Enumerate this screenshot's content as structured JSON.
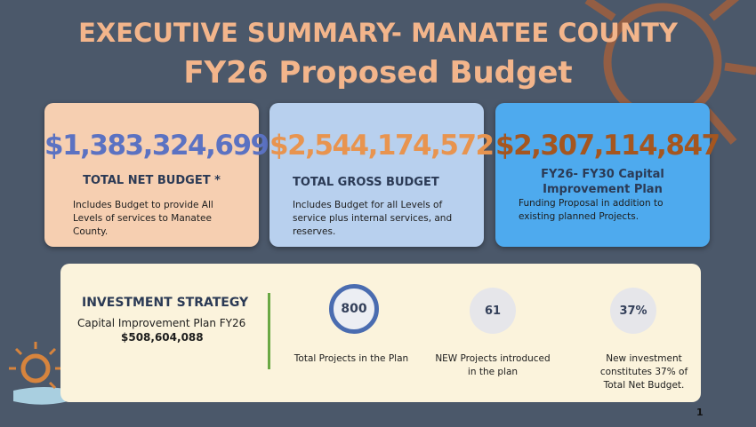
{
  "header": {
    "title_line1": "EXECUTIVE SUMMARY- MANATEE  COUNTY",
    "title_line2": "FY26 Proposed Budget"
  },
  "cards": [
    {
      "amount": "$1,383,324,699",
      "label": "TOTAL NET BUDGET *",
      "description": "Includes Budget to provide All Levels of services to Manatee County."
    },
    {
      "amount": "$2,544,174,572",
      "label": "TOTAL GROSS BUDGET",
      "description": "Includes Budget for all Levels of service plus internal services,  and reserves."
    },
    {
      "amount": "$2,307,114,847",
      "label": "FY26- FY30 Capital Improvement Plan",
      "description": "Funding Proposal in addition to existing planned Projects."
    }
  ],
  "strategy": {
    "title": "INVESTMENT STRATEGY",
    "subtitle": "Capital Improvement Plan FY26",
    "amount": "$508,604,088"
  },
  "stats": [
    {
      "value": "800",
      "label": "Total Projects in the Plan"
    },
    {
      "value": "61",
      "label": "NEW Projects introduced in the plan"
    },
    {
      "value": "37%",
      "label": "New investment constitutes 37% of Total Net Budget."
    }
  ],
  "page_number": "1"
}
